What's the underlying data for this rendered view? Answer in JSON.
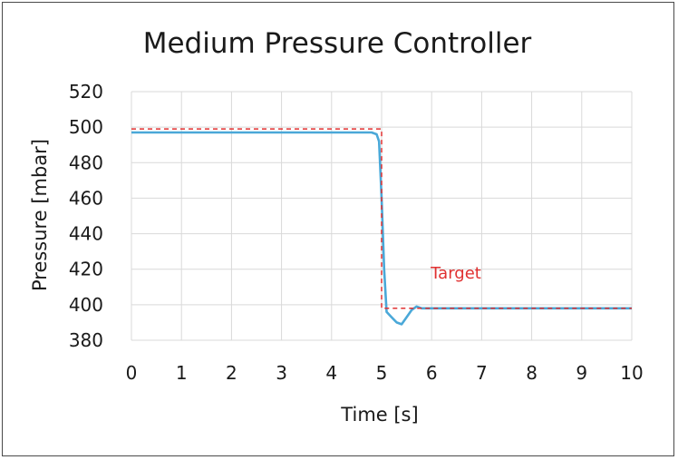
{
  "chart_data": {
    "type": "line",
    "title": "Medium Pressure Controller",
    "xlabel": "Time [s]",
    "ylabel": "Pressure [mbar]",
    "xlim": [
      0,
      10
    ],
    "ylim": [
      380,
      520
    ],
    "x_ticks": [
      "0",
      "1",
      "2",
      "3",
      "4",
      "5",
      "6",
      "7",
      "8",
      "9",
      "10"
    ],
    "y_ticks": [
      "380",
      "400",
      "420",
      "440",
      "460",
      "480",
      "500",
      "520"
    ],
    "grid": true,
    "annotation": "Target",
    "colors": {
      "measured": "#4aa8d8",
      "target": "#e03030"
    },
    "series": [
      {
        "x": [
          0,
          0.5,
          1,
          1.5,
          2,
          2.5,
          3,
          3.5,
          4,
          4.5,
          4.8,
          4.9,
          4.95,
          5.0,
          5.05,
          5.1,
          5.2,
          5.3,
          5.4,
          5.5,
          5.6,
          5.7,
          5.8,
          6,
          6.5,
          7,
          7.5,
          8,
          8.5,
          9,
          9.5,
          10
        ],
        "values": [
          497,
          497,
          497,
          497,
          497,
          497,
          497,
          497,
          497,
          497,
          497,
          496,
          492,
          460,
          420,
          396,
          393,
          390,
          389,
          393,
          397,
          399,
          398,
          398,
          398,
          398,
          398,
          398,
          398,
          398,
          398,
          398
        ]
      },
      {
        "x": [
          0,
          5,
          5,
          10
        ],
        "values": [
          499,
          499,
          398,
          398
        ]
      }
    ]
  }
}
